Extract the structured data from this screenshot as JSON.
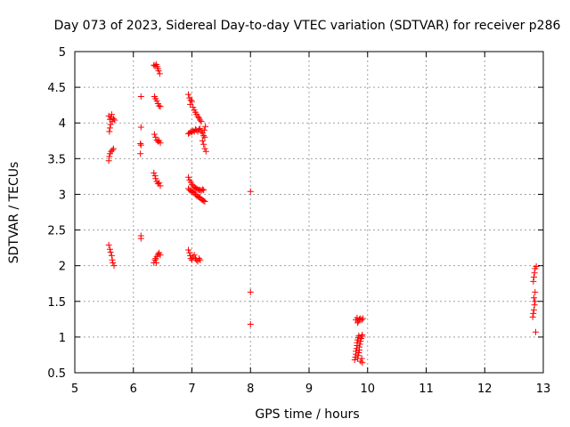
{
  "chart_data": {
    "type": "scatter",
    "title": "Day 073 of 2023, Sidereal Day-to-day VTEC variation (SDTVAR) for receiver p286",
    "xlabel": "GPS time / hours",
    "ylabel": "SDTVAR / TECUs",
    "xlim": [
      5,
      13
    ],
    "ylim": [
      0.5,
      5
    ],
    "grid": true,
    "marker": "+",
    "colors": {
      "points": "#ff0000",
      "grid": "#a0a0a0",
      "axes": "#000000"
    },
    "x_ticks": [
      {
        "value": 5,
        "label": "5"
      },
      {
        "value": 6,
        "label": "6"
      },
      {
        "value": 7,
        "label": "7"
      },
      {
        "value": 8,
        "label": "8"
      },
      {
        "value": 9,
        "label": "9"
      },
      {
        "value": 10,
        "label": "10"
      },
      {
        "value": 11,
        "label": "11"
      },
      {
        "value": 12,
        "label": "12"
      },
      {
        "value": 13,
        "label": "13"
      }
    ],
    "y_ticks": [
      {
        "value": 0.5,
        "label": "0.5"
      },
      {
        "value": 1,
        "label": "1"
      },
      {
        "value": 1.5,
        "label": "1.5"
      },
      {
        "value": 2,
        "label": "2"
      },
      {
        "value": 2.5,
        "label": "2.5"
      },
      {
        "value": 3,
        "label": "3"
      },
      {
        "value": 3.5,
        "label": "3.5"
      },
      {
        "value": 4,
        "label": "4"
      },
      {
        "value": 4.5,
        "label": "4.5"
      },
      {
        "value": 5,
        "label": "5"
      }
    ],
    "series": [
      {
        "name": "SDTVAR",
        "points": [
          [
            5.58,
            4.1
          ],
          [
            5.6,
            4.05
          ],
          [
            5.61,
            3.98
          ],
          [
            5.6,
            3.93
          ],
          [
            5.59,
            3.88
          ],
          [
            5.62,
            4.08
          ],
          [
            5.64,
            4.02
          ],
          [
            5.66,
            4.06
          ],
          [
            5.68,
            4.04
          ],
          [
            5.63,
            4.12
          ],
          [
            5.58,
            3.47
          ],
          [
            5.59,
            3.53
          ],
          [
            5.6,
            3.57
          ],
          [
            5.62,
            3.6
          ],
          [
            5.64,
            3.62
          ],
          [
            5.66,
            3.64
          ],
          [
            5.58,
            2.29
          ],
          [
            5.6,
            2.23
          ],
          [
            5.61,
            2.19
          ],
          [
            5.63,
            2.14
          ],
          [
            5.64,
            2.08
          ],
          [
            5.65,
            2.04
          ],
          [
            5.67,
            2.0
          ],
          [
            6.13,
            4.37
          ],
          [
            6.13,
            3.94
          ],
          [
            6.12,
            3.71
          ],
          [
            6.13,
            3.69
          ],
          [
            6.12,
            3.57
          ],
          [
            6.13,
            2.42
          ],
          [
            6.13,
            2.38
          ],
          [
            6.35,
            4.81
          ],
          [
            6.37,
            4.8
          ],
          [
            6.39,
            4.82
          ],
          [
            6.41,
            4.79
          ],
          [
            6.42,
            4.76
          ],
          [
            6.43,
            4.73
          ],
          [
            6.45,
            4.69
          ],
          [
            6.36,
            4.37
          ],
          [
            6.38,
            4.34
          ],
          [
            6.4,
            4.31
          ],
          [
            6.42,
            4.27
          ],
          [
            6.44,
            4.24
          ],
          [
            6.46,
            4.23
          ],
          [
            6.36,
            3.84
          ],
          [
            6.38,
            3.8
          ],
          [
            6.4,
            3.76
          ],
          [
            6.42,
            3.74
          ],
          [
            6.44,
            3.75
          ],
          [
            6.46,
            3.72
          ],
          [
            6.35,
            3.3
          ],
          [
            6.37,
            3.26
          ],
          [
            6.38,
            3.22
          ],
          [
            6.4,
            3.18
          ],
          [
            6.42,
            3.15
          ],
          [
            6.44,
            3.16
          ],
          [
            6.46,
            3.12
          ],
          [
            6.35,
            2.04
          ],
          [
            6.37,
            2.08
          ],
          [
            6.38,
            2.1
          ],
          [
            6.4,
            2.13
          ],
          [
            6.42,
            2.16
          ],
          [
            6.44,
            2.18
          ],
          [
            6.46,
            2.15
          ],
          [
            6.39,
            2.04
          ],
          [
            6.94,
            4.4
          ],
          [
            6.96,
            4.35
          ],
          [
            6.98,
            4.32
          ],
          [
            7.0,
            4.3
          ],
          [
            6.97,
            4.26
          ],
          [
            7.02,
            4.22
          ],
          [
            7.04,
            4.18
          ],
          [
            7.06,
            4.15
          ],
          [
            7.08,
            4.12
          ],
          [
            7.1,
            4.09
          ],
          [
            7.12,
            4.07
          ],
          [
            7.14,
            4.04
          ],
          [
            7.16,
            4.02
          ],
          [
            6.94,
            3.85
          ],
          [
            6.96,
            3.86
          ],
          [
            6.98,
            3.88
          ],
          [
            7.0,
            3.87
          ],
          [
            7.02,
            3.89
          ],
          [
            7.04,
            3.88
          ],
          [
            7.06,
            3.91
          ],
          [
            7.08,
            3.9
          ],
          [
            7.1,
            3.88
          ],
          [
            7.12,
            3.91
          ],
          [
            7.14,
            3.92
          ],
          [
            7.16,
            3.88
          ],
          [
            7.18,
            3.86
          ],
          [
            7.2,
            3.82
          ],
          [
            7.22,
            3.8
          ],
          [
            7.18,
            3.75
          ],
          [
            7.2,
            3.7
          ],
          [
            7.22,
            3.64
          ],
          [
            7.24,
            3.6
          ],
          [
            7.21,
            3.9
          ],
          [
            7.23,
            3.95
          ],
          [
            6.94,
            3.24
          ],
          [
            6.96,
            3.2
          ],
          [
            6.98,
            3.17
          ],
          [
            7.0,
            3.14
          ],
          [
            7.02,
            3.12
          ],
          [
            7.04,
            3.1
          ],
          [
            7.06,
            3.09
          ],
          [
            7.08,
            3.08
          ],
          [
            7.1,
            3.07
          ],
          [
            7.12,
            3.06
          ],
          [
            7.14,
            3.06
          ],
          [
            7.16,
            3.05
          ],
          [
            7.18,
            3.07
          ],
          [
            7.2,
            3.06
          ],
          [
            6.94,
            3.08
          ],
          [
            6.96,
            3.06
          ],
          [
            6.98,
            3.05
          ],
          [
            7.0,
            3.04
          ],
          [
            7.02,
            3.03
          ],
          [
            7.04,
            3.02
          ],
          [
            7.06,
            3.0
          ],
          [
            7.08,
            2.98
          ],
          [
            7.1,
            2.97
          ],
          [
            7.12,
            2.96
          ],
          [
            7.14,
            2.95
          ],
          [
            7.16,
            2.93
          ],
          [
            7.18,
            2.92
          ],
          [
            7.2,
            2.91
          ],
          [
            7.22,
            2.9
          ],
          [
            6.94,
            2.22
          ],
          [
            6.96,
            2.18
          ],
          [
            6.97,
            2.14
          ],
          [
            6.98,
            2.1
          ],
          [
            7.0,
            2.08
          ],
          [
            7.02,
            2.12
          ],
          [
            7.04,
            2.15
          ],
          [
            7.06,
            2.1
          ],
          [
            7.08,
            2.08
          ],
          [
            7.1,
            2.06
          ],
          [
            7.12,
            2.1
          ],
          [
            7.14,
            2.08
          ],
          [
            8.0,
            3.04
          ],
          [
            8.0,
            1.63
          ],
          [
            8.0,
            1.18
          ],
          [
            9.8,
            1.24
          ],
          [
            9.82,
            1.27
          ],
          [
            9.84,
            1.22
          ],
          [
            9.86,
            1.25
          ],
          [
            9.88,
            1.26
          ],
          [
            9.9,
            1.24
          ],
          [
            9.92,
            1.26
          ],
          [
            9.83,
            1.2
          ],
          [
            9.78,
            0.68
          ],
          [
            9.79,
            0.72
          ],
          [
            9.8,
            0.76
          ],
          [
            9.8,
            0.8
          ],
          [
            9.81,
            0.84
          ],
          [
            9.82,
            0.88
          ],
          [
            9.82,
            0.92
          ],
          [
            9.83,
            0.96
          ],
          [
            9.84,
            0.99
          ],
          [
            9.85,
            1.02
          ],
          [
            9.83,
            0.7
          ],
          [
            9.84,
            0.74
          ],
          [
            9.85,
            0.78
          ],
          [
            9.86,
            0.82
          ],
          [
            9.86,
            0.86
          ],
          [
            9.87,
            0.9
          ],
          [
            9.88,
            0.94
          ],
          [
            9.89,
            0.98
          ],
          [
            9.9,
            1.01
          ],
          [
            9.91,
            1.03
          ],
          [
            9.88,
            0.66
          ],
          [
            9.9,
            0.7
          ],
          [
            9.91,
            0.64
          ],
          [
            12.82,
            1.28
          ],
          [
            12.83,
            1.33
          ],
          [
            12.84,
            1.38
          ],
          [
            12.85,
            1.45
          ],
          [
            12.86,
            1.5
          ],
          [
            12.84,
            1.55
          ],
          [
            12.86,
            1.63
          ],
          [
            12.83,
            1.78
          ],
          [
            12.84,
            1.84
          ],
          [
            12.85,
            1.9
          ],
          [
            12.86,
            1.96
          ],
          [
            12.88,
            1.99
          ],
          [
            12.87,
            1.07
          ]
        ]
      }
    ]
  }
}
